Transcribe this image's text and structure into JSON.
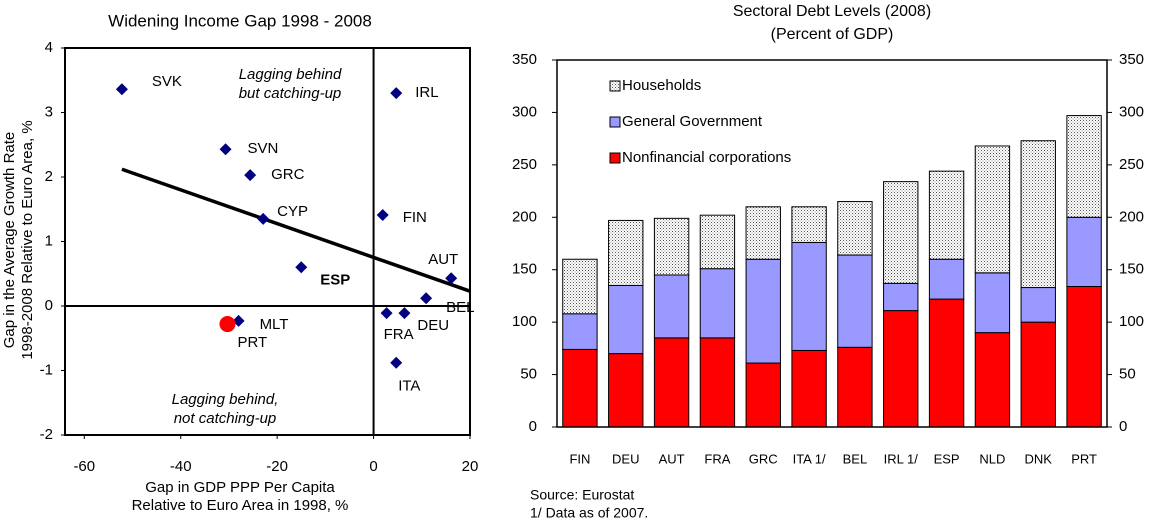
{
  "chart_data": [
    {
      "type": "scatter",
      "title": "Widening Income Gap 1998 - 2008",
      "x_label": [
        "Gap in GDP PPP Per Capita",
        "Relative to Euro Area in 1998, %"
      ],
      "y_label": [
        "Gap in the Average Growth Rate",
        "1998-2008 Relative to Euro Area, %"
      ],
      "labels": [
        "SVK",
        "IRL",
        "SVN",
        "GRC",
        "CYP",
        "FIN",
        "ESP",
        "AUT",
        "BEL",
        "FRA",
        "DEU",
        "MLT",
        "PRT",
        "ITA"
      ],
      "x": [
        -52.2,
        4.7,
        -30.7,
        -25.6,
        -22.9,
        1.9,
        -15,
        16.1,
        10.9,
        2.7,
        6.4,
        -28,
        -30.3,
        4.7
      ],
      "values": [
        3.36,
        3.3,
        2.43,
        2.03,
        1.35,
        1.41,
        0.6,
        0.43,
        0.12,
        -0.11,
        -0.11,
        -0.23,
        -0.28,
        -0.88
      ],
      "colors": [
        "#000080",
        "#000080",
        "#000080",
        "#000080",
        "#000080",
        "#000080",
        "#000080",
        "#000080",
        "#000080",
        "#000080",
        "#000080",
        "#000080",
        "#ff0000",
        "#000080"
      ],
      "markers": [
        "diamond",
        "diamond",
        "diamond",
        "diamond",
        "diamond",
        "diamond",
        "diamond",
        "diamond",
        "diamond",
        "diamond",
        "diamond",
        "diamond",
        "circle",
        "diamond"
      ],
      "trend_line": {
        "x": [
          -52.2,
          20
        ],
        "y": [
          2.12,
          0.23
        ]
      },
      "annotations": [
        {
          "lines": [
            "Lagging behind",
            "but catching-up"
          ],
          "color": "#000080"
        },
        {
          "lines": [
            "Lagging behind,",
            "not catching-up"
          ],
          "color": "#ff0000"
        }
      ],
      "xlim": [
        -64,
        20
      ],
      "xticks": [
        -60,
        -40,
        -20,
        0,
        20
      ],
      "ylim": [
        -2,
        4
      ],
      "yticks": [
        -2,
        -1,
        0,
        1,
        2,
        3,
        4
      ]
    },
    {
      "type": "stacked_bar",
      "title": [
        "Sectoral Debt Levels (2008)",
        "(Percent of GDP)"
      ],
      "categories": [
        "FIN",
        "DEU",
        "AUT",
        "FRA",
        "GRC",
        "ITA 1/",
        "BEL",
        "IRL 1/",
        "ESP",
        "NLD",
        "DNK",
        "PRT"
      ],
      "series": [
        {
          "name": "Nonfinancial corporations",
          "color": "#ff0000",
          "values": [
            74,
            70,
            85,
            85,
            61,
            73,
            76,
            111,
            122,
            90,
            100,
            134
          ]
        },
        {
          "name": "General Government",
          "color": "#9999ff",
          "values": [
            34,
            65,
            60,
            66,
            99,
            103,
            88,
            26,
            38,
            57,
            33,
            66
          ]
        },
        {
          "name": "Households",
          "color": "#ffffff",
          "pattern": "dots",
          "values": [
            52,
            62,
            54,
            51,
            50,
            34,
            51,
            97,
            84,
            121,
            140,
            97
          ]
        }
      ],
      "ylim": [
        0,
        350
      ],
      "yticks": [
        0,
        50,
        100,
        150,
        200,
        250,
        300,
        350
      ],
      "y2lim": [
        0,
        350
      ],
      "y2ticks": [
        0,
        50,
        100,
        150,
        200,
        250,
        300,
        350
      ],
      "notes": [
        "Source: Eurostat",
        "1/ Data as of 2007."
      ]
    }
  ]
}
